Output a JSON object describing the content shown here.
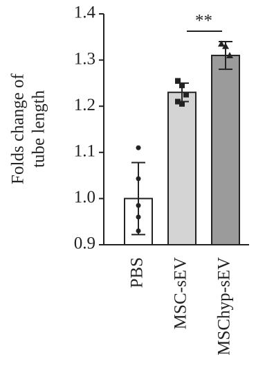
{
  "chart_data": {
    "type": "bar",
    "y_label": [
      "Folds change of",
      "tube length"
    ],
    "categories": [
      "PBS",
      "MSC-sEV",
      "MSChyp-sEV"
    ],
    "values": [
      1.0,
      1.23,
      1.31
    ],
    "errors": [
      0.078,
      0.02,
      0.03
    ],
    "colors": [
      "#ffffff",
      "#d4d4d4",
      "#9b9b9b"
    ],
    "markers": [
      "circle",
      "square",
      "triangle"
    ],
    "points": [
      [
        1.11,
        1.043,
        0.985,
        0.96,
        0.93
      ],
      [
        1.255,
        1.245,
        1.225,
        1.21,
        1.205
      ],
      [
        1.335,
        1.33,
        1.31
      ]
    ],
    "annotations": [
      {
        "text": "**"
      }
    ],
    "ylim": [
      0.9,
      1.4
    ],
    "yticks": [
      {
        "value": 0.9,
        "label": "0.9"
      },
      {
        "value": 1.0,
        "label": "1.0"
      },
      1.1,
      1.2,
      1.3,
      1.4
    ]
  }
}
